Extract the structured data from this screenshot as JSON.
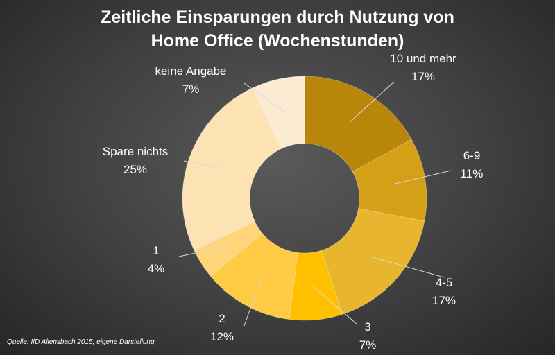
{
  "chart_data": {
    "type": "pie",
    "variant": "donut",
    "title_lines": [
      "Zeitliche Einsparungen durch Nutzung von",
      "Home Office (Wochenstunden)"
    ],
    "categories": [
      "10 und mehr",
      "6-9",
      "4-5",
      "3",
      "2",
      "1",
      "Spare nichts",
      "keine Angabe"
    ],
    "values": [
      17,
      11,
      17,
      7,
      12,
      4,
      25,
      7
    ],
    "value_labels": [
      "17%",
      "11%",
      "17%",
      "7%",
      "12%",
      "4%",
      "25%",
      "7%"
    ],
    "colors": [
      "#B8860B",
      "#D4A017",
      "#E8B52E",
      "#FFC000",
      "#FFCB45",
      "#FFD47A",
      "#FDE3B3",
      "#FCEBD3"
    ],
    "legend": "none"
  },
  "source": "Quelle: IfD Allensbach  2015, eigene Darstellung"
}
